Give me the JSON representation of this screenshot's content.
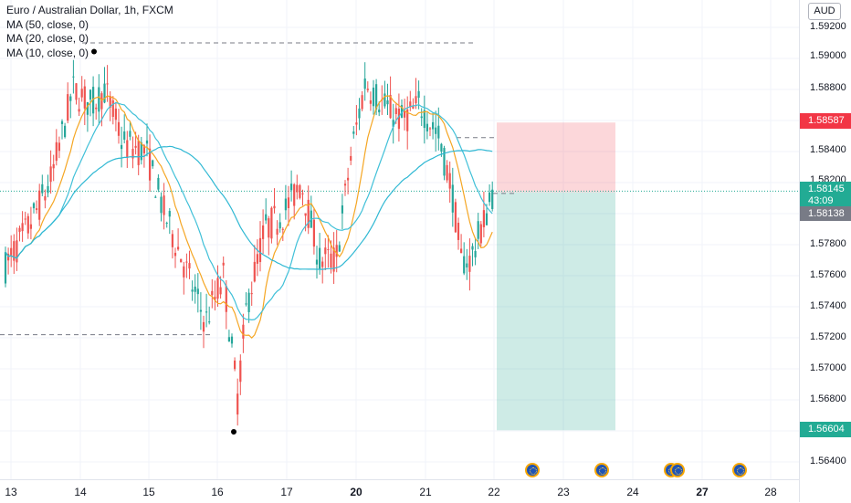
{
  "legend": {
    "title": "Euro / Australian Dollar, 1h, FXCM",
    "indicators": [
      "MA (50, close, 0)",
      "MA (20, close, 0)",
      "MA (10, close, 0)"
    ]
  },
  "price_axis": {
    "currency": "AUD",
    "ticks": [
      "1.59200",
      "1.59000",
      "1.58800",
      "1.58400",
      "1.58200",
      "1.57800",
      "1.57600",
      "1.57400",
      "1.57200",
      "1.57000",
      "1.56800",
      "1.56400"
    ],
    "tags": {
      "stop": "1.58587",
      "current": "1.58145",
      "countdown": "43:09",
      "entry": "1.58138",
      "target": "1.56604"
    }
  },
  "time_axis": {
    "labels": [
      "13",
      "14",
      "15",
      "16",
      "17",
      "20",
      "21",
      "22",
      "23",
      "24",
      "27",
      "28"
    ],
    "bold_labels": [
      "20",
      "27"
    ]
  },
  "colors": {
    "up": "#26a69a",
    "down": "#ef5350",
    "ma50": "#2fb8d3",
    "ma20": "#40c0d8",
    "ma10": "#f5a623",
    "stop_zone": "rgba(242,54,69,0.2)",
    "target_zone": "rgba(8,153,129,0.2)",
    "stop_tag": "#f23645",
    "current_tag": "#22ab94",
    "entry_tag": "#787b86",
    "target_tag": "#22ab94"
  },
  "chart_data": {
    "type": "candlestick",
    "symbol": "EURAUD",
    "timeframe": "1h",
    "ylim": [
      1.5628,
      1.5935
    ],
    "levels": {
      "resistance_high": 1.591,
      "support_low": 1.5722,
      "stop_loss": 1.58587,
      "entry": 1.58138,
      "take_profit": 1.56604,
      "current_price": 1.58145,
      "dashed_upper": 1.5849,
      "dashed_entry": 1.5813
    },
    "markers": [
      {
        "label": "swing-high",
        "value": 1.5905
      },
      {
        "label": "swing-low",
        "value": 1.566
      }
    ]
  }
}
